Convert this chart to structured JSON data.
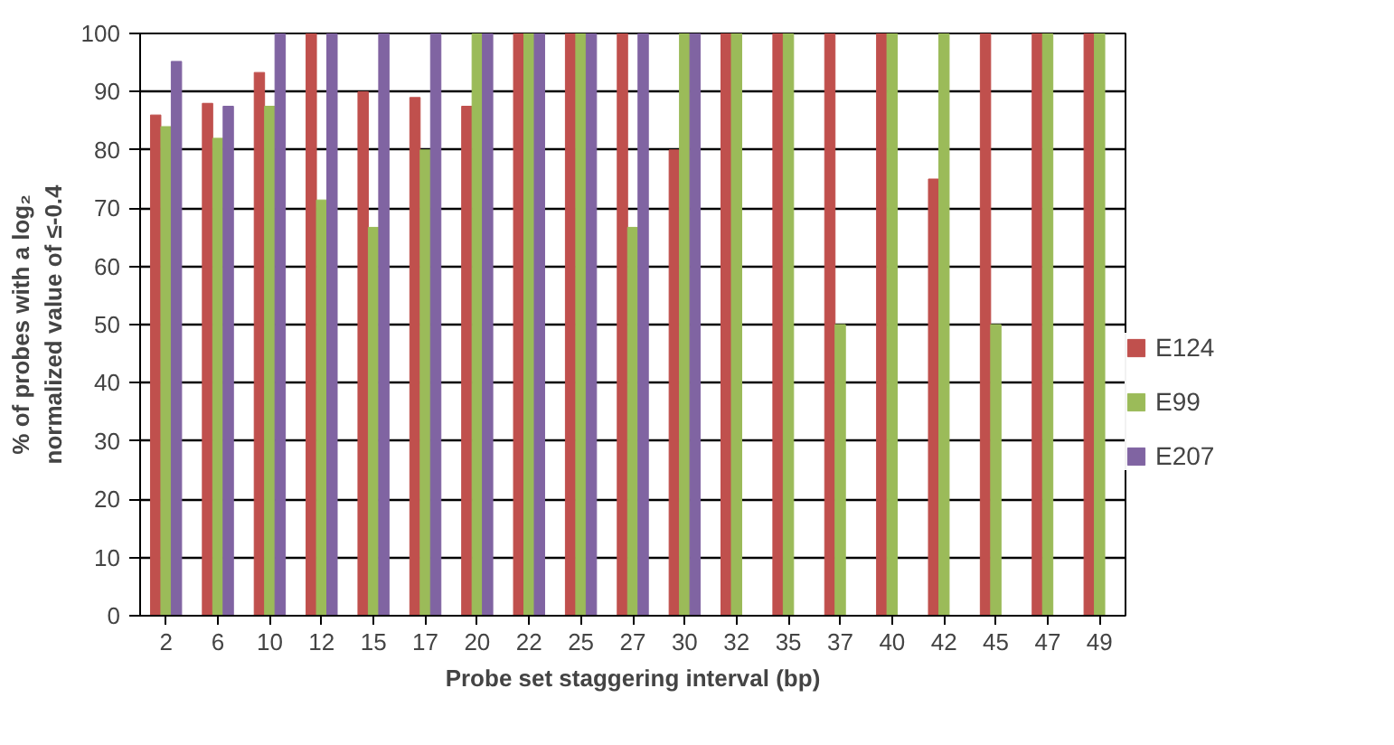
{
  "chart_data": {
    "type": "bar",
    "xlabel": "Probe set staggering interval (bp)",
    "ylabel": "% of probes with a log₂ normalized value of ≤-0.4",
    "categories": [
      "2",
      "6",
      "10",
      "12",
      "15",
      "17",
      "20",
      "22",
      "25",
      "27",
      "30",
      "32",
      "35",
      "37",
      "40",
      "42",
      "45",
      "47",
      "49"
    ],
    "series": [
      {
        "name": "E124",
        "color": "#c0504d",
        "values": [
          86,
          88,
          93.3,
          100,
          90,
          89,
          87.5,
          100,
          100,
          100,
          80,
          100,
          100,
          100,
          100,
          75,
          100,
          100,
          100
        ]
      },
      {
        "name": "E99",
        "color": "#9bbb59",
        "values": [
          84,
          82,
          87.5,
          71.4,
          66.7,
          80,
          100,
          100,
          100,
          66.7,
          100,
          100,
          100,
          50,
          100,
          100,
          50,
          100,
          100
        ]
      },
      {
        "name": "E207",
        "color": "#8064a2",
        "values": [
          95.2,
          87.5,
          100,
          100,
          100,
          100,
          100,
          100,
          100,
          100,
          100,
          null,
          null,
          null,
          null,
          null,
          null,
          null,
          null
        ]
      }
    ],
    "ylim": [
      0,
      100
    ],
    "yticks": [
      0,
      10,
      20,
      30,
      40,
      50,
      60,
      70,
      80,
      90,
      100
    ],
    "grid": "y",
    "legend": "right"
  }
}
